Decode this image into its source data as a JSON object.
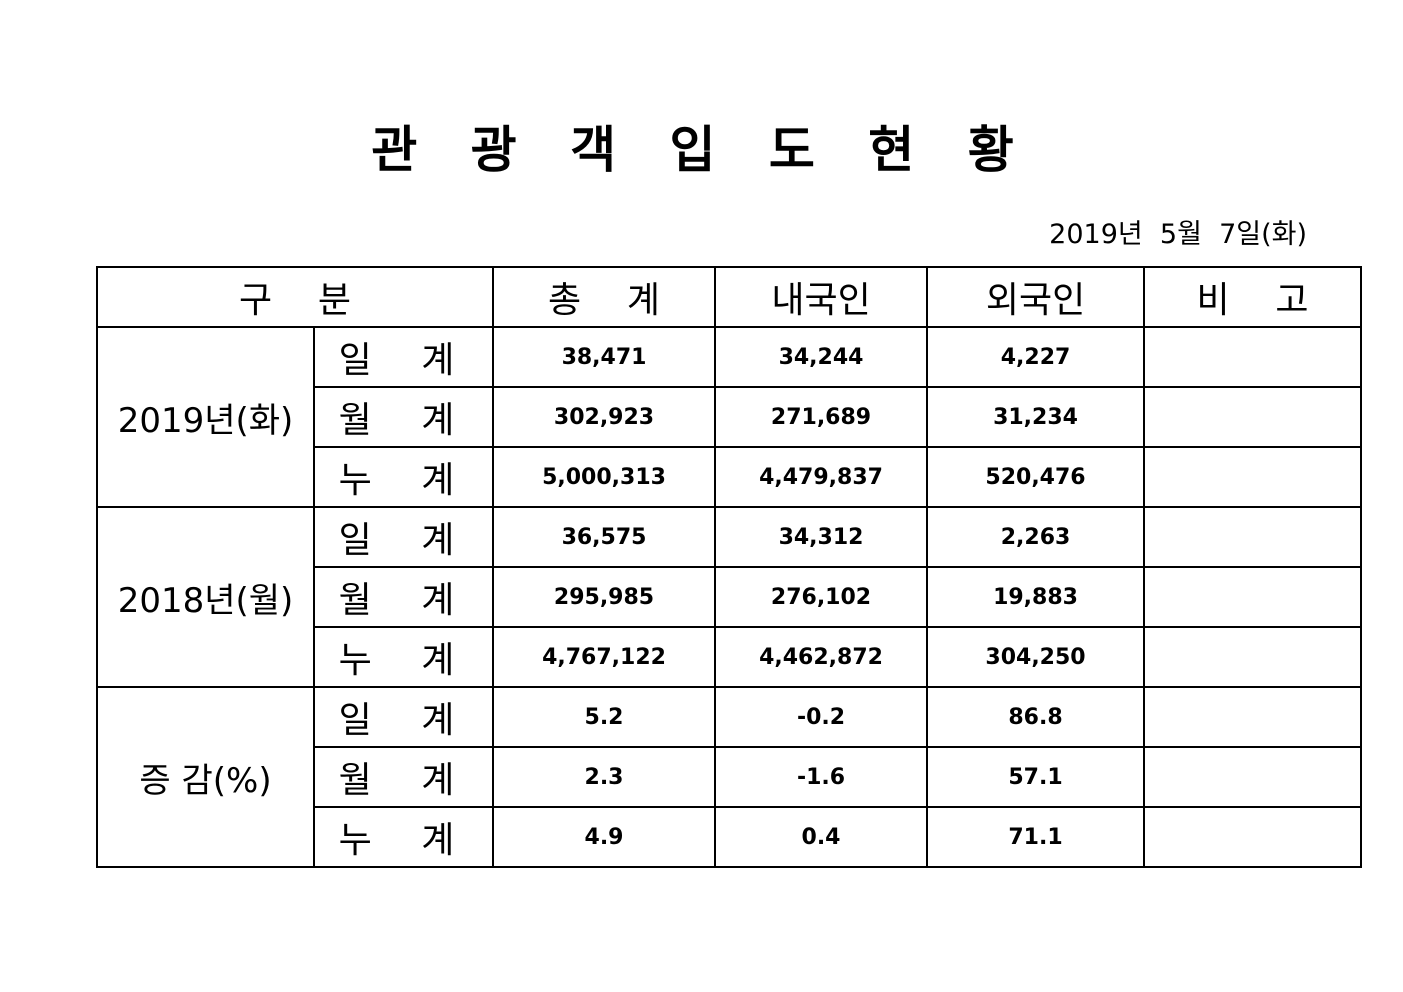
{
  "title": "관 광 객 입 도 현 황",
  "date": "2019년  5월  7일(화)",
  "table": {
    "header": [
      "구    분",
      "총    계",
      "내국인",
      "외국인",
      "비    고"
    ],
    "groups": [
      {
        "label": "2019년(화)",
        "rows": [
          {
            "label": "일 계",
            "values": [
              "38,471",
              "34,244",
              "4,227"
            ]
          },
          {
            "label": "월 계",
            "values": [
              "302,923",
              "271,689",
              "31,234"
            ]
          },
          {
            "label": "누 계",
            "values": [
              "5,000,313",
              "4,479,837",
              "520,476"
            ]
          }
        ]
      },
      {
        "label": "2018년(월)",
        "rows": [
          {
            "label": "일 계",
            "values": [
              "36,575",
              "34,312",
              "2,263"
            ]
          },
          {
            "label": "월 계",
            "values": [
              "295,985",
              "276,102",
              "19,883"
            ]
          },
          {
            "label": "누 계",
            "values": [
              "4,767,122",
              "4,462,872",
              "304,250"
            ]
          }
        ]
      },
      {
        "label": "증 감(%)",
        "rows": [
          {
            "label": "일 계",
            "values": [
              "5.2",
              "-0.2",
              "86.8"
            ]
          },
          {
            "label": "월 계",
            "values": [
              "2.3",
              "-1.6",
              "57.1"
            ]
          },
          {
            "label": "누 계",
            "values": [
              "4.9",
              "0.4",
              "71.1"
            ]
          }
        ]
      }
    ]
  }
}
